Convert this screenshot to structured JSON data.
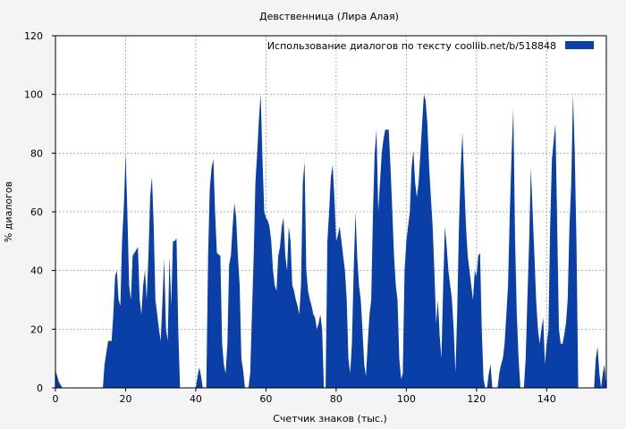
{
  "chart_data": {
    "type": "area",
    "title": "Девственница (Лира Алая)",
    "xlabel": "Счетчик знаков (тыс.)",
    "ylabel": "% диалогов",
    "xlim": [
      0,
      157
    ],
    "ylim": [
      0,
      120
    ],
    "x_ticks": [
      0,
      20,
      40,
      60,
      80,
      100,
      120,
      140
    ],
    "y_ticks": [
      0,
      20,
      40,
      60,
      80,
      100,
      120
    ],
    "grid": true,
    "legend_position": "top-right",
    "colors": {
      "series": "#0a3fa8",
      "background": "#f4f4f4",
      "plot_bg": "#ffffff",
      "grid": "#b0b0b0"
    },
    "series": [
      {
        "name": "Использование диалогов по тексту  coollib.net/b/518848",
        "points": [
          [
            0,
            6
          ],
          [
            1,
            2
          ],
          [
            2,
            0
          ],
          [
            13.5,
            0
          ],
          [
            14,
            8
          ],
          [
            15,
            16
          ],
          [
            16,
            16
          ],
          [
            16.5,
            25
          ],
          [
            17,
            38
          ],
          [
            17.5,
            40
          ],
          [
            18,
            30
          ],
          [
            18.5,
            28
          ],
          [
            19,
            50
          ],
          [
            19.5,
            62
          ],
          [
            20,
            80
          ],
          [
            20.5,
            60
          ],
          [
            21,
            35
          ],
          [
            21.5,
            30
          ],
          [
            22,
            45
          ],
          [
            23,
            47
          ],
          [
            23.5,
            48
          ],
          [
            24,
            30
          ],
          [
            24.5,
            25
          ],
          [
            25,
            35
          ],
          [
            25.5,
            40
          ],
          [
            26,
            30
          ],
          [
            26.5,
            45
          ],
          [
            27,
            65
          ],
          [
            27.5,
            72
          ],
          [
            28,
            55
          ],
          [
            28.5,
            30
          ],
          [
            29,
            25
          ],
          [
            29.5,
            20
          ],
          [
            30,
            16
          ],
          [
            30.5,
            30
          ],
          [
            31,
            44
          ],
          [
            31.5,
            20
          ],
          [
            32,
            16
          ],
          [
            32.5,
            45
          ],
          [
            33,
            28
          ],
          [
            33.5,
            50
          ],
          [
            34,
            50
          ],
          [
            34.5,
            51
          ],
          [
            35,
            20
          ],
          [
            35.5,
            0
          ],
          [
            40,
            0
          ],
          [
            40.5,
            4
          ],
          [
            41,
            7
          ],
          [
            41.5,
            4
          ],
          [
            42,
            0
          ],
          [
            43,
            0
          ],
          [
            43.5,
            45
          ],
          [
            44,
            68
          ],
          [
            44.5,
            75
          ],
          [
            45,
            78
          ],
          [
            45.5,
            60
          ],
          [
            46,
            46
          ],
          [
            47,
            45
          ],
          [
            47.5,
            15
          ],
          [
            48,
            8
          ],
          [
            48.5,
            5
          ],
          [
            49,
            15
          ],
          [
            49.5,
            42
          ],
          [
            50,
            45
          ],
          [
            50.5,
            55
          ],
          [
            51,
            63
          ],
          [
            51.5,
            58
          ],
          [
            52,
            45
          ],
          [
            52.5,
            35
          ],
          [
            53,
            10
          ],
          [
            53.5,
            6
          ],
          [
            54,
            0
          ],
          [
            55,
            0
          ],
          [
            55.5,
            5
          ],
          [
            56,
            25
          ],
          [
            56.5,
            45
          ],
          [
            57,
            70
          ],
          [
            57.5,
            80
          ],
          [
            58,
            92
          ],
          [
            58.5,
            100
          ],
          [
            59,
            78
          ],
          [
            59.5,
            60
          ],
          [
            60,
            58
          ],
          [
            60.5,
            57
          ],
          [
            61,
            55
          ],
          [
            61.5,
            50
          ],
          [
            62,
            40
          ],
          [
            62.5,
            35
          ],
          [
            63,
            33
          ],
          [
            63.5,
            45
          ],
          [
            64,
            48
          ],
          [
            64.5,
            55
          ],
          [
            65,
            58
          ],
          [
            65.5,
            45
          ],
          [
            66,
            40
          ],
          [
            66.5,
            55
          ],
          [
            67,
            50
          ],
          [
            67.5,
            35
          ],
          [
            68,
            33
          ],
          [
            68.5,
            30
          ],
          [
            69,
            28
          ],
          [
            69.5,
            25
          ],
          [
            70,
            35
          ],
          [
            70.5,
            70
          ],
          [
            71,
            77
          ],
          [
            71.5,
            40
          ],
          [
            72,
            33
          ],
          [
            72.5,
            30
          ],
          [
            73,
            28
          ],
          [
            73.5,
            25
          ],
          [
            74,
            24
          ],
          [
            74.5,
            20
          ],
          [
            75,
            22
          ],
          [
            75.5,
            25
          ],
          [
            76,
            20
          ],
          [
            76.5,
            0
          ],
          [
            77,
            0
          ],
          [
            77.5,
            50
          ],
          [
            78,
            60
          ],
          [
            78.5,
            72
          ],
          [
            79,
            76
          ],
          [
            79.5,
            65
          ],
          [
            80,
            50
          ],
          [
            80.5,
            52
          ],
          [
            81,
            55
          ],
          [
            81.5,
            50
          ],
          [
            82,
            45
          ],
          [
            82.5,
            40
          ],
          [
            83,
            30
          ],
          [
            83.5,
            10
          ],
          [
            84,
            5
          ],
          [
            84.5,
            15
          ],
          [
            85,
            40
          ],
          [
            85.5,
            60
          ],
          [
            86,
            45
          ],
          [
            86.5,
            35
          ],
          [
            87,
            30
          ],
          [
            87.5,
            20
          ],
          [
            88,
            8
          ],
          [
            88.5,
            4
          ],
          [
            89,
            15
          ],
          [
            89.5,
            25
          ],
          [
            90,
            30
          ],
          [
            90.5,
            60
          ],
          [
            91,
            80
          ],
          [
            91.5,
            88
          ],
          [
            92,
            60
          ],
          [
            92.5,
            70
          ],
          [
            93,
            80
          ],
          [
            93.5,
            85
          ],
          [
            94,
            88
          ],
          [
            94.5,
            88
          ],
          [
            95,
            88
          ],
          [
            95.5,
            75
          ],
          [
            96,
            60
          ],
          [
            96.5,
            45
          ],
          [
            97,
            35
          ],
          [
            97.5,
            30
          ],
          [
            98,
            10
          ],
          [
            98.5,
            3
          ],
          [
            99,
            5
          ],
          [
            99.5,
            40
          ],
          [
            100,
            50
          ],
          [
            100.5,
            55
          ],
          [
            101,
            60
          ],
          [
            101.5,
            75
          ],
          [
            102,
            81
          ],
          [
            102.5,
            70
          ],
          [
            103,
            65
          ],
          [
            103.5,
            70
          ],
          [
            104,
            80
          ],
          [
            104.5,
            90
          ],
          [
            105,
            100
          ],
          [
            105.5,
            98
          ],
          [
            106,
            90
          ],
          [
            106.5,
            75
          ],
          [
            107,
            65
          ],
          [
            107.5,
            55
          ],
          [
            108,
            40
          ],
          [
            108.5,
            22
          ],
          [
            109,
            30
          ],
          [
            109.5,
            18
          ],
          [
            110,
            10
          ],
          [
            110.5,
            35
          ],
          [
            111,
            55
          ],
          [
            111.5,
            48
          ],
          [
            112,
            40
          ],
          [
            112.5,
            35
          ],
          [
            113,
            30
          ],
          [
            113.5,
            20
          ],
          [
            114,
            5
          ],
          [
            114.5,
            25
          ],
          [
            115,
            55
          ],
          [
            115.5,
            75
          ],
          [
            116,
            87
          ],
          [
            116.5,
            70
          ],
          [
            117,
            55
          ],
          [
            117.5,
            45
          ],
          [
            118,
            40
          ],
          [
            118.5,
            35
          ],
          [
            119,
            30
          ],
          [
            119.5,
            40
          ],
          [
            120,
            38
          ],
          [
            120.5,
            45
          ],
          [
            121,
            46
          ],
          [
            121.5,
            20
          ],
          [
            122,
            3
          ],
          [
            122.5,
            0
          ],
          [
            123,
            0
          ],
          [
            123.5,
            5
          ],
          [
            124,
            8
          ],
          [
            124.5,
            0
          ],
          [
            126,
            0
          ],
          [
            126.5,
            5
          ],
          [
            127,
            8
          ],
          [
            127.5,
            10
          ],
          [
            128,
            15
          ],
          [
            128.5,
            25
          ],
          [
            129,
            35
          ],
          [
            129.5,
            60
          ],
          [
            130,
            80
          ],
          [
            130.5,
            95
          ],
          [
            131,
            50
          ],
          [
            131.5,
            25
          ],
          [
            132,
            10
          ],
          [
            132.5,
            0
          ],
          [
            133.5,
            0
          ],
          [
            134,
            10
          ],
          [
            134.5,
            30
          ],
          [
            135,
            50
          ],
          [
            135.5,
            75
          ],
          [
            136,
            60
          ],
          [
            136.5,
            45
          ],
          [
            137,
            30
          ],
          [
            137.5,
            20
          ],
          [
            138,
            15
          ],
          [
            138.5,
            20
          ],
          [
            139,
            24
          ],
          [
            139.5,
            8
          ],
          [
            140,
            15
          ],
          [
            140.5,
            20
          ],
          [
            141,
            55
          ],
          [
            141.5,
            78
          ],
          [
            142,
            84
          ],
          [
            142.5,
            90
          ],
          [
            143,
            55
          ],
          [
            143.5,
            20
          ],
          [
            144,
            15
          ],
          [
            144.5,
            15
          ],
          [
            145,
            18
          ],
          [
            145.5,
            22
          ],
          [
            146,
            30
          ],
          [
            146.5,
            55
          ],
          [
            147,
            70
          ],
          [
            147.5,
            100
          ],
          [
            148,
            80
          ],
          [
            148.5,
            50
          ],
          [
            149,
            0
          ],
          [
            153.5,
            0
          ],
          [
            154,
            10
          ],
          [
            154.5,
            14
          ],
          [
            155,
            5
          ],
          [
            155.5,
            0
          ],
          [
            156,
            5
          ],
          [
            156.5,
            8
          ],
          [
            157,
            0
          ]
        ]
      }
    ]
  }
}
